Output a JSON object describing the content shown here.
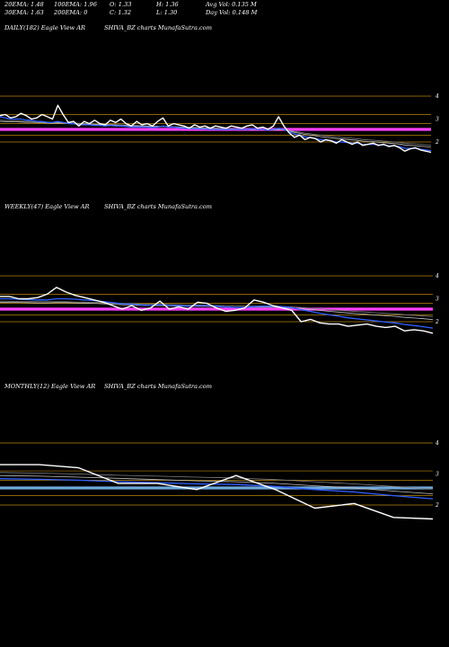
{
  "header": {
    "row1": [
      "20EMA: 1.48",
      "100EMA: 1.96",
      "O: 1.33",
      "H: 1.36",
      "Avg Vol: 0.135 M"
    ],
    "row2": [
      "30EMA: 1.63",
      "200EMA: 0",
      "C: 1.32",
      "L: 1.30",
      "Day Vol: 0.148 M"
    ]
  },
  "panels": [
    {
      "label": "DAILY(182) Eagle   View  AR",
      "site": "SHIVA_BZ charts MunafaSutra.com"
    },
    {
      "label": "WEEKLY(47) Eagle   View  AR",
      "site": "SHIVA_BZ charts MunafaSutra.com"
    },
    {
      "label": "MONTHLY(12) Eagle   View  AR",
      "site": "SHIVA_BZ charts MunafaSutra.com"
    }
  ],
  "colors": {
    "background": "#000000",
    "grid": "#b8860b",
    "price": "#ffffff",
    "ema_blue": "#3060ff",
    "ema_gray": "#c0c0c0",
    "ema_dark": "#808080",
    "level_daily": "#ff40ff",
    "level_monthly": "#6fa8dc"
  },
  "chart_data": [
    {
      "type": "line",
      "title": "DAILY(182)",
      "yticks": [
        "4",
        "3",
        "2"
      ],
      "gridlines": [
        4,
        3.2,
        2.8,
        2.3,
        2
      ],
      "level": 2.55,
      "level_color": "level_daily",
      "ylim": [
        0.8,
        5
      ],
      "series": [
        {
          "role": "price",
          "values": [
            3.15,
            3.2,
            3.05,
            3.1,
            3.25,
            3.15,
            3.0,
            3.05,
            3.2,
            3.1,
            3.0,
            3.6,
            3.2,
            2.85,
            2.9,
            2.7,
            2.9,
            2.8,
            2.95,
            2.8,
            2.75,
            2.95,
            2.85,
            3.0,
            2.8,
            2.7,
            2.9,
            2.75,
            2.8,
            2.7,
            2.9,
            3.05,
            2.7,
            2.8,
            2.75,
            2.7,
            2.6,
            2.75,
            2.65,
            2.7,
            2.6,
            2.7,
            2.65,
            2.6,
            2.7,
            2.65,
            2.6,
            2.7,
            2.75,
            2.6,
            2.65,
            2.55,
            2.7,
            3.1,
            2.7,
            2.4,
            2.2,
            2.3,
            2.1,
            2.2,
            2.15,
            2.0,
            2.1,
            2.05,
            1.95,
            2.1,
            2.0,
            1.9,
            2.0,
            1.85,
            1.9,
            1.95,
            1.85,
            1.9,
            1.8,
            1.85,
            1.75,
            1.6,
            1.7,
            1.75,
            1.65,
            1.6,
            1.55
          ]
        },
        {
          "role": "ema_blue",
          "values": [
            3.1,
            3.05,
            3.0,
            3.0,
            3.0,
            2.95,
            2.95,
            2.9,
            2.9,
            2.85,
            2.85,
            2.9,
            2.85,
            2.8,
            2.8,
            2.75,
            2.75,
            2.75,
            2.72,
            2.72,
            2.7,
            2.72,
            2.7,
            2.7,
            2.68,
            2.65,
            2.66,
            2.65,
            2.65,
            2.62,
            2.65,
            2.7,
            2.65,
            2.65,
            2.62,
            2.6,
            2.58,
            2.58,
            2.57,
            2.57,
            2.55,
            2.55,
            2.55,
            2.55,
            2.55,
            2.55,
            2.55,
            2.55,
            2.58,
            2.55,
            2.55,
            2.52,
            2.55,
            2.6,
            2.55,
            2.45,
            2.35,
            2.3,
            2.22,
            2.2,
            2.15,
            2.1,
            2.08,
            2.05,
            2.0,
            2.0,
            1.98,
            1.95,
            1.95,
            1.9,
            1.9,
            1.9,
            1.87,
            1.87,
            1.83,
            1.83,
            1.8,
            1.72,
            1.72,
            1.72,
            1.68,
            1.65,
            1.62
          ]
        },
        {
          "role": "ema_gray",
          "values": [
            2.9,
            2.89,
            2.88,
            2.88,
            2.87,
            2.86,
            2.86,
            2.85,
            2.84,
            2.83,
            2.82,
            2.83,
            2.82,
            2.8,
            2.79,
            2.78,
            2.77,
            2.77,
            2.76,
            2.75,
            2.74,
            2.74,
            2.73,
            2.72,
            2.71,
            2.7,
            2.7,
            2.69,
            2.68,
            2.67,
            2.67,
            2.67,
            2.66,
            2.65,
            2.64,
            2.63,
            2.62,
            2.62,
            2.61,
            2.6,
            2.59,
            2.59,
            2.58,
            2.57,
            2.57,
            2.56,
            2.55,
            2.55,
            2.55,
            2.54,
            2.53,
            2.52,
            2.52,
            2.55,
            2.53,
            2.48,
            2.42,
            2.38,
            2.33,
            2.3,
            2.27,
            2.23,
            2.2,
            2.18,
            2.15,
            2.13,
            2.11,
            2.09,
            2.07,
            2.04,
            2.02,
            2.01,
            1.99,
            1.97,
            1.95,
            1.93,
            1.91,
            1.87,
            1.85,
            1.84,
            1.82,
            1.8,
            1.78
          ]
        },
        {
          "role": "ema_dark",
          "values": [
            2.95,
            2.94,
            2.93,
            2.92,
            2.91,
            2.9,
            2.9,
            2.89,
            2.88,
            2.87,
            2.86,
            2.86,
            2.85,
            2.84,
            2.83,
            2.82,
            2.81,
            2.8,
            2.79,
            2.78,
            2.77,
            2.77,
            2.76,
            2.75,
            2.74,
            2.73,
            2.72,
            2.71,
            2.7,
            2.69,
            2.69,
            2.69,
            2.68,
            2.67,
            2.66,
            2.65,
            2.64,
            2.63,
            2.62,
            2.61,
            2.6,
            2.6,
            2.59,
            2.58,
            2.58,
            2.57,
            2.56,
            2.56,
            2.56,
            2.55,
            2.54,
            2.53,
            2.53,
            2.55,
            2.54,
            2.5,
            2.46,
            2.43,
            2.39,
            2.36,
            2.33,
            2.3,
            2.27,
            2.25,
            2.22,
            2.2,
            2.18,
            2.16,
            2.14,
            2.11,
            2.09,
            2.08,
            2.06,
            2.04,
            2.02,
            2.0,
            1.98,
            1.95,
            1.93,
            1.92,
            1.9,
            1.88,
            1.86
          ]
        }
      ]
    },
    {
      "type": "line",
      "title": "WEEKLY(47)",
      "yticks": [
        "4",
        "3",
        "2"
      ],
      "gridlines": [
        4,
        3.2,
        2.8,
        2.3,
        2
      ],
      "level": 2.55,
      "level_color": "level_daily",
      "ylim": [
        0.8,
        5
      ],
      "series": [
        {
          "role": "price",
          "values": [
            3.1,
            3.1,
            3.0,
            3.0,
            3.05,
            3.2,
            3.5,
            3.3,
            3.15,
            3.05,
            2.95,
            2.85,
            2.7,
            2.55,
            2.7,
            2.5,
            2.6,
            2.9,
            2.55,
            2.65,
            2.55,
            2.85,
            2.8,
            2.6,
            2.45,
            2.5,
            2.6,
            2.95,
            2.85,
            2.7,
            2.6,
            2.5,
            2.0,
            2.1,
            1.95,
            1.9,
            1.9,
            1.8,
            1.85,
            1.9,
            1.8,
            1.75,
            1.8,
            1.6,
            1.65,
            1.6,
            1.5
          ]
        },
        {
          "role": "ema_blue",
          "values": [
            3.0,
            3.0,
            2.98,
            2.96,
            2.95,
            2.95,
            3.0,
            3.0,
            2.98,
            2.95,
            2.92,
            2.88,
            2.83,
            2.78,
            2.77,
            2.73,
            2.71,
            2.74,
            2.71,
            2.7,
            2.68,
            2.7,
            2.7,
            2.68,
            2.64,
            2.62,
            2.62,
            2.66,
            2.68,
            2.68,
            2.66,
            2.62,
            2.52,
            2.45,
            2.37,
            2.3,
            2.24,
            2.17,
            2.12,
            2.08,
            2.03,
            1.98,
            1.95,
            1.88,
            1.83,
            1.78,
            1.72
          ]
        },
        {
          "role": "ema_gray",
          "values": [
            2.85,
            2.84,
            2.84,
            2.83,
            2.82,
            2.82,
            2.83,
            2.83,
            2.82,
            2.81,
            2.8,
            2.78,
            2.76,
            2.74,
            2.73,
            2.71,
            2.7,
            2.7,
            2.69,
            2.68,
            2.67,
            2.67,
            2.67,
            2.66,
            2.64,
            2.63,
            2.62,
            2.63,
            2.63,
            2.63,
            2.62,
            2.6,
            2.56,
            2.53,
            2.49,
            2.45,
            2.42,
            2.38,
            2.35,
            2.32,
            2.29,
            2.26,
            2.23,
            2.19,
            2.16,
            2.13,
            2.09
          ]
        },
        {
          "role": "ema_dark",
          "values": [
            2.9,
            2.89,
            2.88,
            2.88,
            2.87,
            2.87,
            2.87,
            2.87,
            2.86,
            2.85,
            2.84,
            2.83,
            2.81,
            2.8,
            2.79,
            2.77,
            2.76,
            2.76,
            2.75,
            2.74,
            2.73,
            2.73,
            2.72,
            2.71,
            2.7,
            2.69,
            2.68,
            2.68,
            2.68,
            2.67,
            2.66,
            2.65,
            2.62,
            2.59,
            2.56,
            2.53,
            2.5,
            2.47,
            2.44,
            2.42,
            2.39,
            2.36,
            2.34,
            2.31,
            2.28,
            2.25,
            2.22
          ]
        }
      ]
    },
    {
      "type": "line",
      "title": "MONTHLY(12)",
      "yticks": [
        "4",
        "3",
        "2"
      ],
      "gridlines": [
        4,
        3.1,
        2.8,
        2.3,
        2
      ],
      "level": 2.55,
      "level_color": "level_monthly",
      "ylim": [
        0.8,
        5
      ],
      "series": [
        {
          "role": "price",
          "values": [
            3.3,
            3.3,
            3.2,
            2.7,
            2.7,
            2.5,
            2.95,
            2.5,
            1.9,
            2.05,
            1.6,
            1.55
          ]
        },
        {
          "role": "ema_blue",
          "values": [
            2.85,
            2.83,
            2.8,
            2.75,
            2.72,
            2.68,
            2.66,
            2.6,
            2.5,
            2.42,
            2.3,
            2.2
          ]
        },
        {
          "role": "ema_gray",
          "values": [
            2.95,
            2.93,
            2.9,
            2.86,
            2.82,
            2.78,
            2.75,
            2.7,
            2.62,
            2.55,
            2.45,
            2.36
          ]
        },
        {
          "role": "ema_dark",
          "values": [
            3.05,
            3.03,
            3.0,
            2.96,
            2.93,
            2.9,
            2.87,
            2.82,
            2.75,
            2.68,
            2.6,
            2.52
          ]
        }
      ]
    }
  ]
}
